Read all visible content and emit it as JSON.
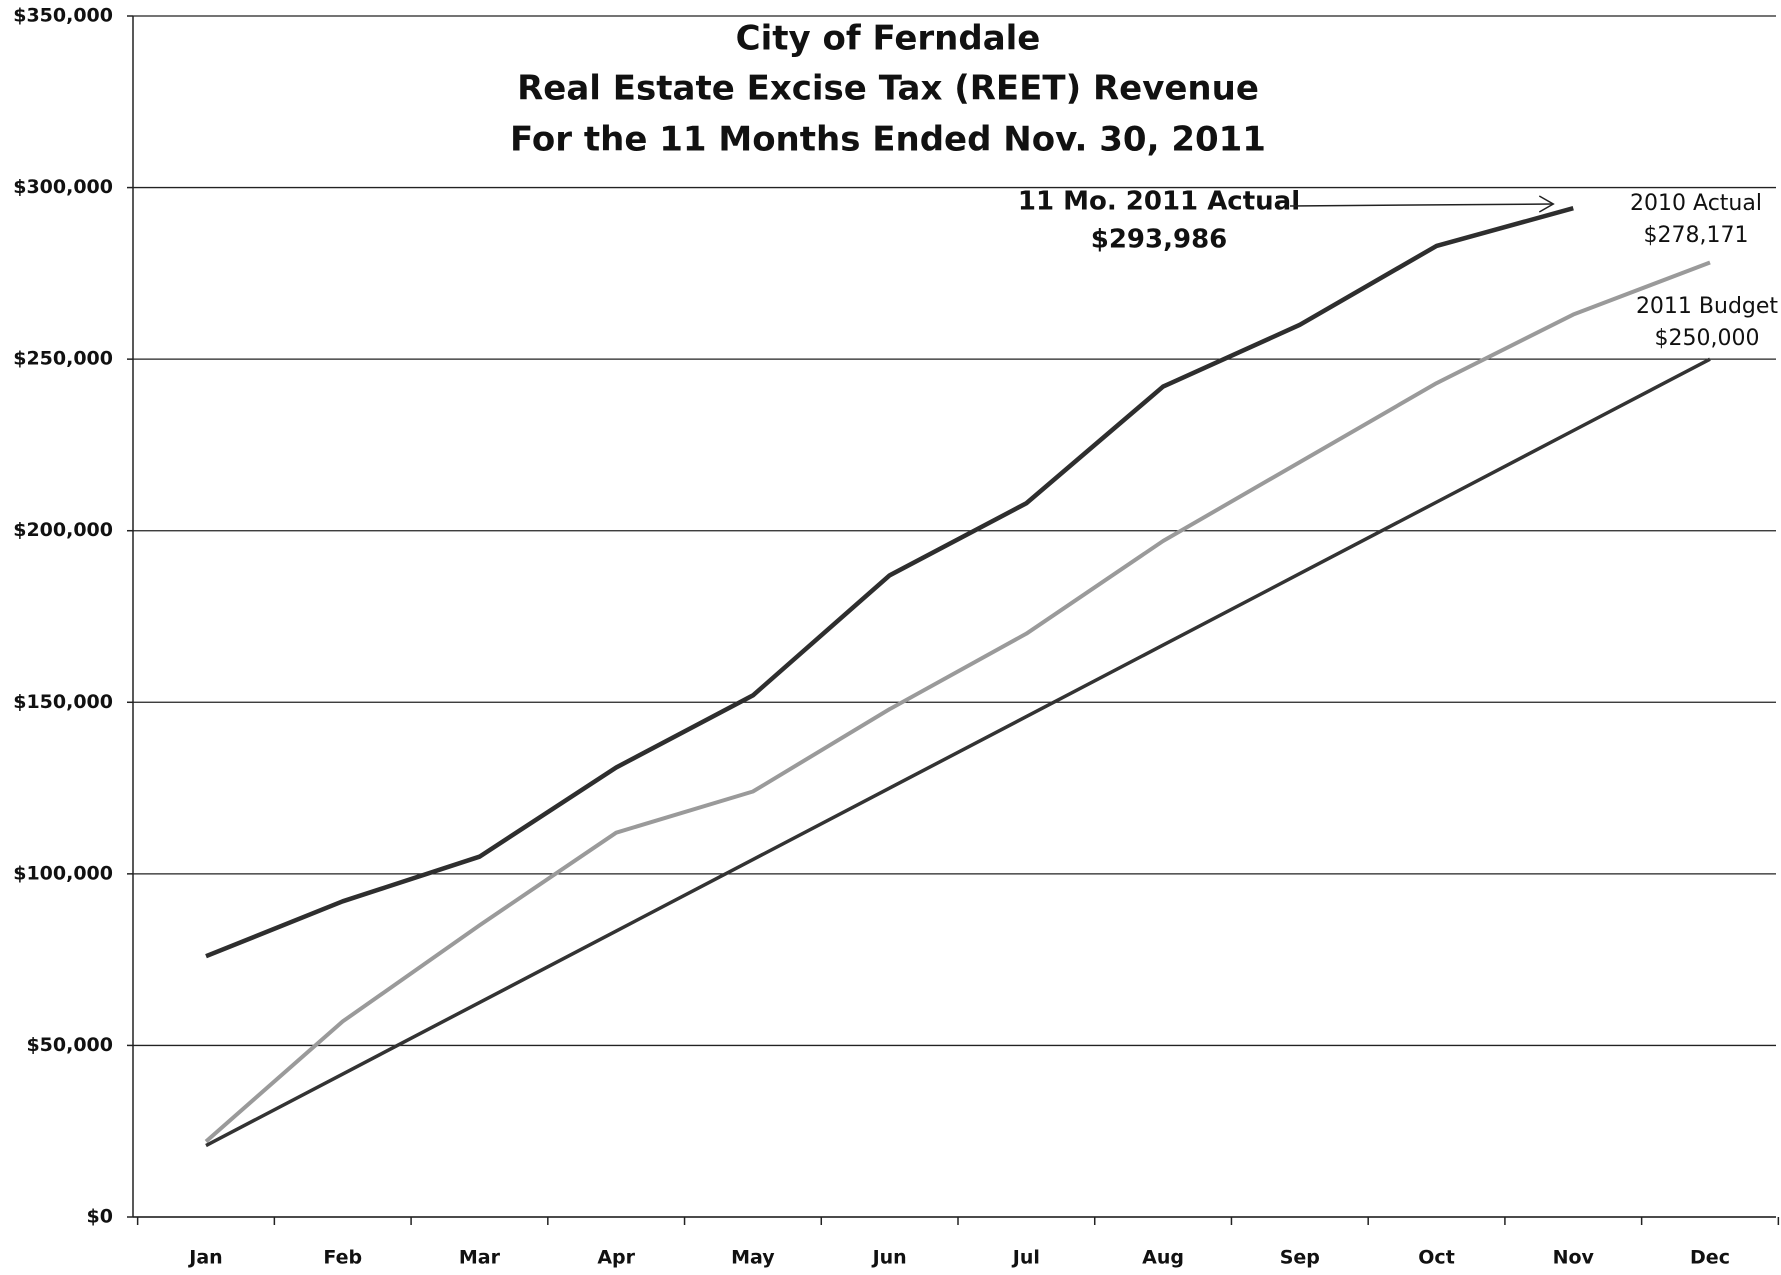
{
  "chart_data": {
    "type": "line",
    "title": [
      "City of Ferndale",
      "Real Estate Excise Tax (REET) Revenue",
      "For the 11 Months Ended Nov. 30, 2011"
    ],
    "categories": [
      "Jan",
      "Feb",
      "Mar",
      "Apr",
      "May",
      "Jun",
      "Jul",
      "Aug",
      "Sep",
      "Oct",
      "Nov",
      "Dec"
    ],
    "series": [
      {
        "name": "11 Mo. 2011 Actual",
        "color": "#2e2e2e",
        "values": [
          76000,
          92000,
          105000,
          131000,
          152000,
          187000,
          208000,
          242000,
          260000,
          283000,
          293986,
          null
        ],
        "value_labels": [
          null,
          null,
          null,
          null,
          null,
          null,
          null,
          null,
          null,
          null,
          "$293,986",
          null
        ]
      },
      {
        "name": "2010 Actual",
        "color": "#9a9a9a",
        "values": [
          22000,
          57000,
          85000,
          112000,
          124000,
          148000,
          170000,
          197000,
          220000,
          243000,
          263000,
          278171
        ],
        "value_labels": [
          null,
          null,
          null,
          null,
          null,
          null,
          null,
          null,
          null,
          null,
          null,
          "$278,171"
        ]
      },
      {
        "name": "2011 Budget",
        "color": "#333333",
        "values": [
          20833,
          41667,
          62500,
          83333,
          104167,
          125000,
          145833,
          166667,
          187500,
          208333,
          229167,
          250000
        ],
        "value_labels": [
          null,
          null,
          null,
          null,
          null,
          null,
          null,
          null,
          null,
          null,
          null,
          "$250,000"
        ]
      }
    ],
    "ylim": [
      0,
      350000
    ],
    "yticks": [
      {
        "value": 0,
        "label": "$0"
      },
      {
        "value": 50000,
        "label": "$50,000"
      },
      {
        "value": 100000,
        "label": "$100,000"
      },
      {
        "value": 150000,
        "label": "$150,000"
      },
      {
        "value": 200000,
        "label": "$200,000"
      },
      {
        "value": 250000,
        "label": "$250,000"
      },
      {
        "value": 300000,
        "label": "$300,000"
      },
      {
        "value": 350000,
        "label": "$350,000"
      }
    ],
    "grid": true
  }
}
